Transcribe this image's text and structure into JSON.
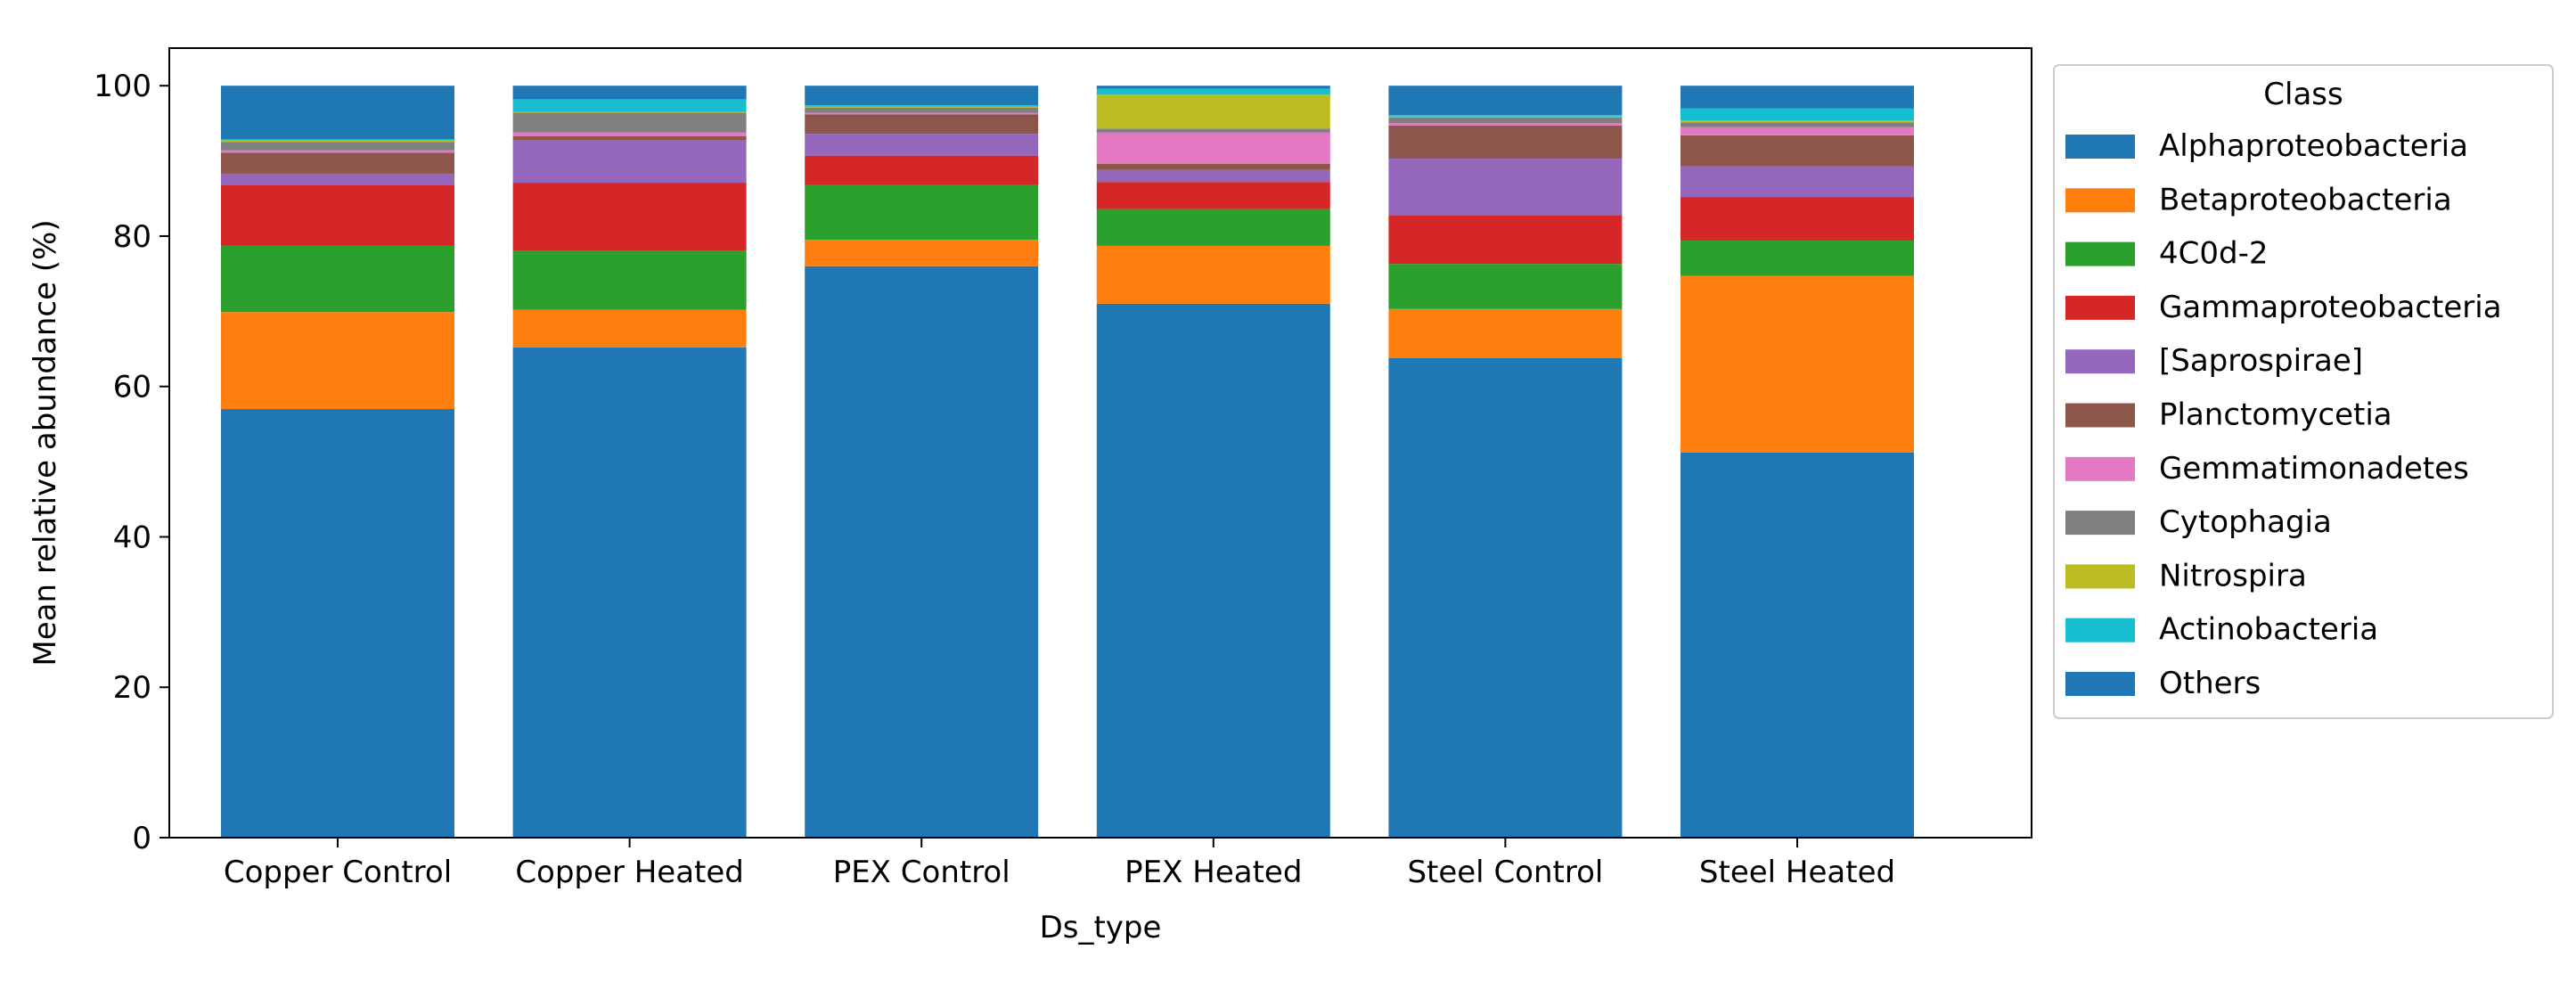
{
  "chart_data": {
    "type": "bar",
    "stacked": true,
    "title": "",
    "xlabel": "Ds_type",
    "ylabel": "Mean relative abundance (%)",
    "ylim": [
      0,
      105
    ],
    "yticks": [
      0,
      20,
      40,
      60,
      80,
      100
    ],
    "legend_title": "Class",
    "legend_position": "outside-right",
    "categories": [
      "Copper Control",
      "Copper Heated",
      "PEX Control",
      "PEX Heated",
      "Steel Control",
      "Steel Heated"
    ],
    "series": [
      {
        "name": "Alphaproteobacteria",
        "color": "#1f77b4",
        "values": [
          57.0,
          65.2,
          76.0,
          71.0,
          63.8,
          51.2
        ]
      },
      {
        "name": "Betaproteobacteria",
        "color": "#ff7f0e",
        "values": [
          12.9,
          5.0,
          3.5,
          7.7,
          6.5,
          23.5
        ]
      },
      {
        "name": "4C0d-2",
        "color": "#2ca02c",
        "values": [
          8.8,
          7.9,
          7.3,
          4.9,
          6.0,
          4.7
        ]
      },
      {
        "name": "Gammaproteobacteria",
        "color": "#d62728",
        "values": [
          8.1,
          9.0,
          3.9,
          3.6,
          6.5,
          5.8
        ]
      },
      {
        "name": "[Saprospirae]",
        "color": "#9467bd",
        "values": [
          1.5,
          5.6,
          2.9,
          1.6,
          7.5,
          4.1
        ]
      },
      {
        "name": "Planctomycetia",
        "color": "#8c564b",
        "values": [
          2.8,
          0.6,
          2.6,
          0.8,
          4.4,
          4.1
        ]
      },
      {
        "name": "Gemmatimonadetes",
        "color": "#e377c2",
        "values": [
          0.3,
          0.5,
          0.2,
          4.2,
          0.3,
          1.1
        ]
      },
      {
        "name": "Cytophagia",
        "color": "#7f7f7f",
        "values": [
          1.1,
          2.6,
          0.7,
          0.5,
          0.8,
          0.6
        ]
      },
      {
        "name": "Nitrospira",
        "color": "#bcbd22",
        "values": [
          0.2,
          0.1,
          0.1,
          4.5,
          0.1,
          0.3
        ]
      },
      {
        "name": "Actinobacteria",
        "color": "#17becf",
        "values": [
          0.2,
          1.7,
          0.2,
          0.8,
          0.2,
          1.6
        ]
      },
      {
        "name": "Others",
        "color": "#1f77b4",
        "values": [
          7.1,
          1.8,
          2.6,
          0.4,
          3.9,
          3.0
        ]
      }
    ]
  }
}
